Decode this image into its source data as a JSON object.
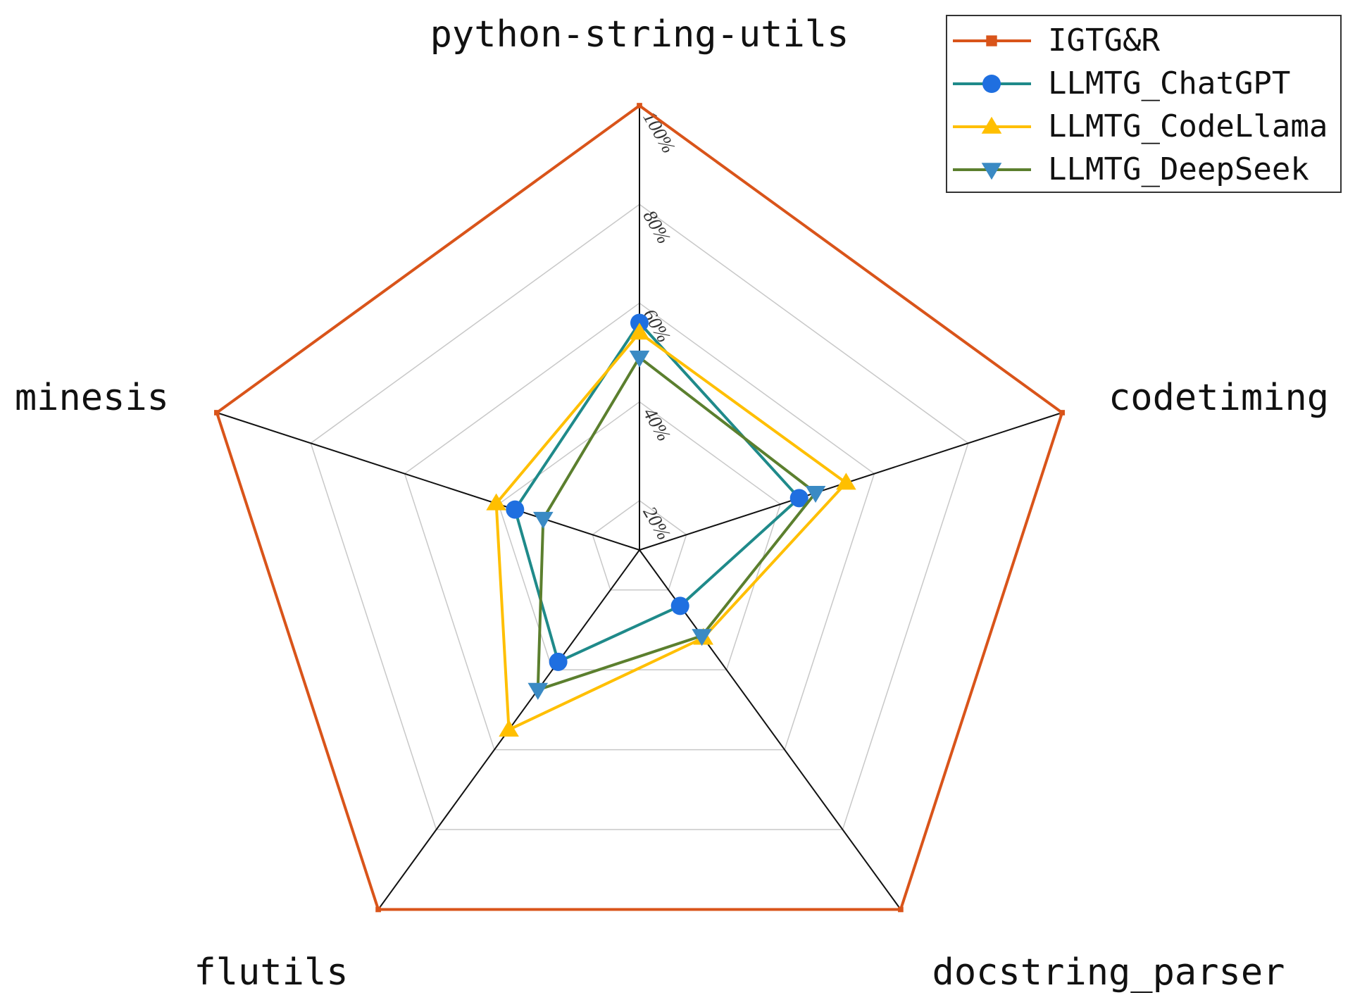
{
  "chart_data": {
    "type": "radar",
    "categories": [
      "python-string-utils",
      "codetiming",
      "docstring_parser",
      "flutils",
      "minesis"
    ],
    "rlim": [
      10,
      100
    ],
    "rticks": [
      {
        "value": 20,
        "label": "20%"
      },
      {
        "value": 40,
        "label": "40%"
      },
      {
        "value": 60,
        "label": "60%"
      },
      {
        "value": 80,
        "label": "80%"
      },
      {
        "value": 100,
        "label": "100%"
      }
    ],
    "grid": true,
    "legend": "upper right",
    "series": [
      {
        "name": "IGTG&R",
        "color": "#d9541a",
        "marker": "square",
        "marker_color": "#d9541a",
        "values": [
          100,
          100,
          100,
          100,
          100
        ]
      },
      {
        "name": "LLMTG_ChatGPT",
        "color": "#1f8a8a",
        "marker": "circle",
        "marker_color": "#1f6fe0",
        "values": [
          56,
          44,
          24,
          38,
          36.5
        ]
      },
      {
        "name": "LLMTG_CodeLlama",
        "color": "#ffbf00",
        "marker": "triangle-up",
        "marker_color": "#ffbf00",
        "values": [
          54,
          54,
          32,
          55,
          40.5
        ]
      },
      {
        "name": "LLMTG_DeepSeek",
        "color": "#5b7f2e",
        "marker": "triangle-down",
        "marker_color": "#3a8ac4",
        "values": [
          49,
          47.5,
          31.5,
          45,
          30.5
        ]
      }
    ]
  }
}
